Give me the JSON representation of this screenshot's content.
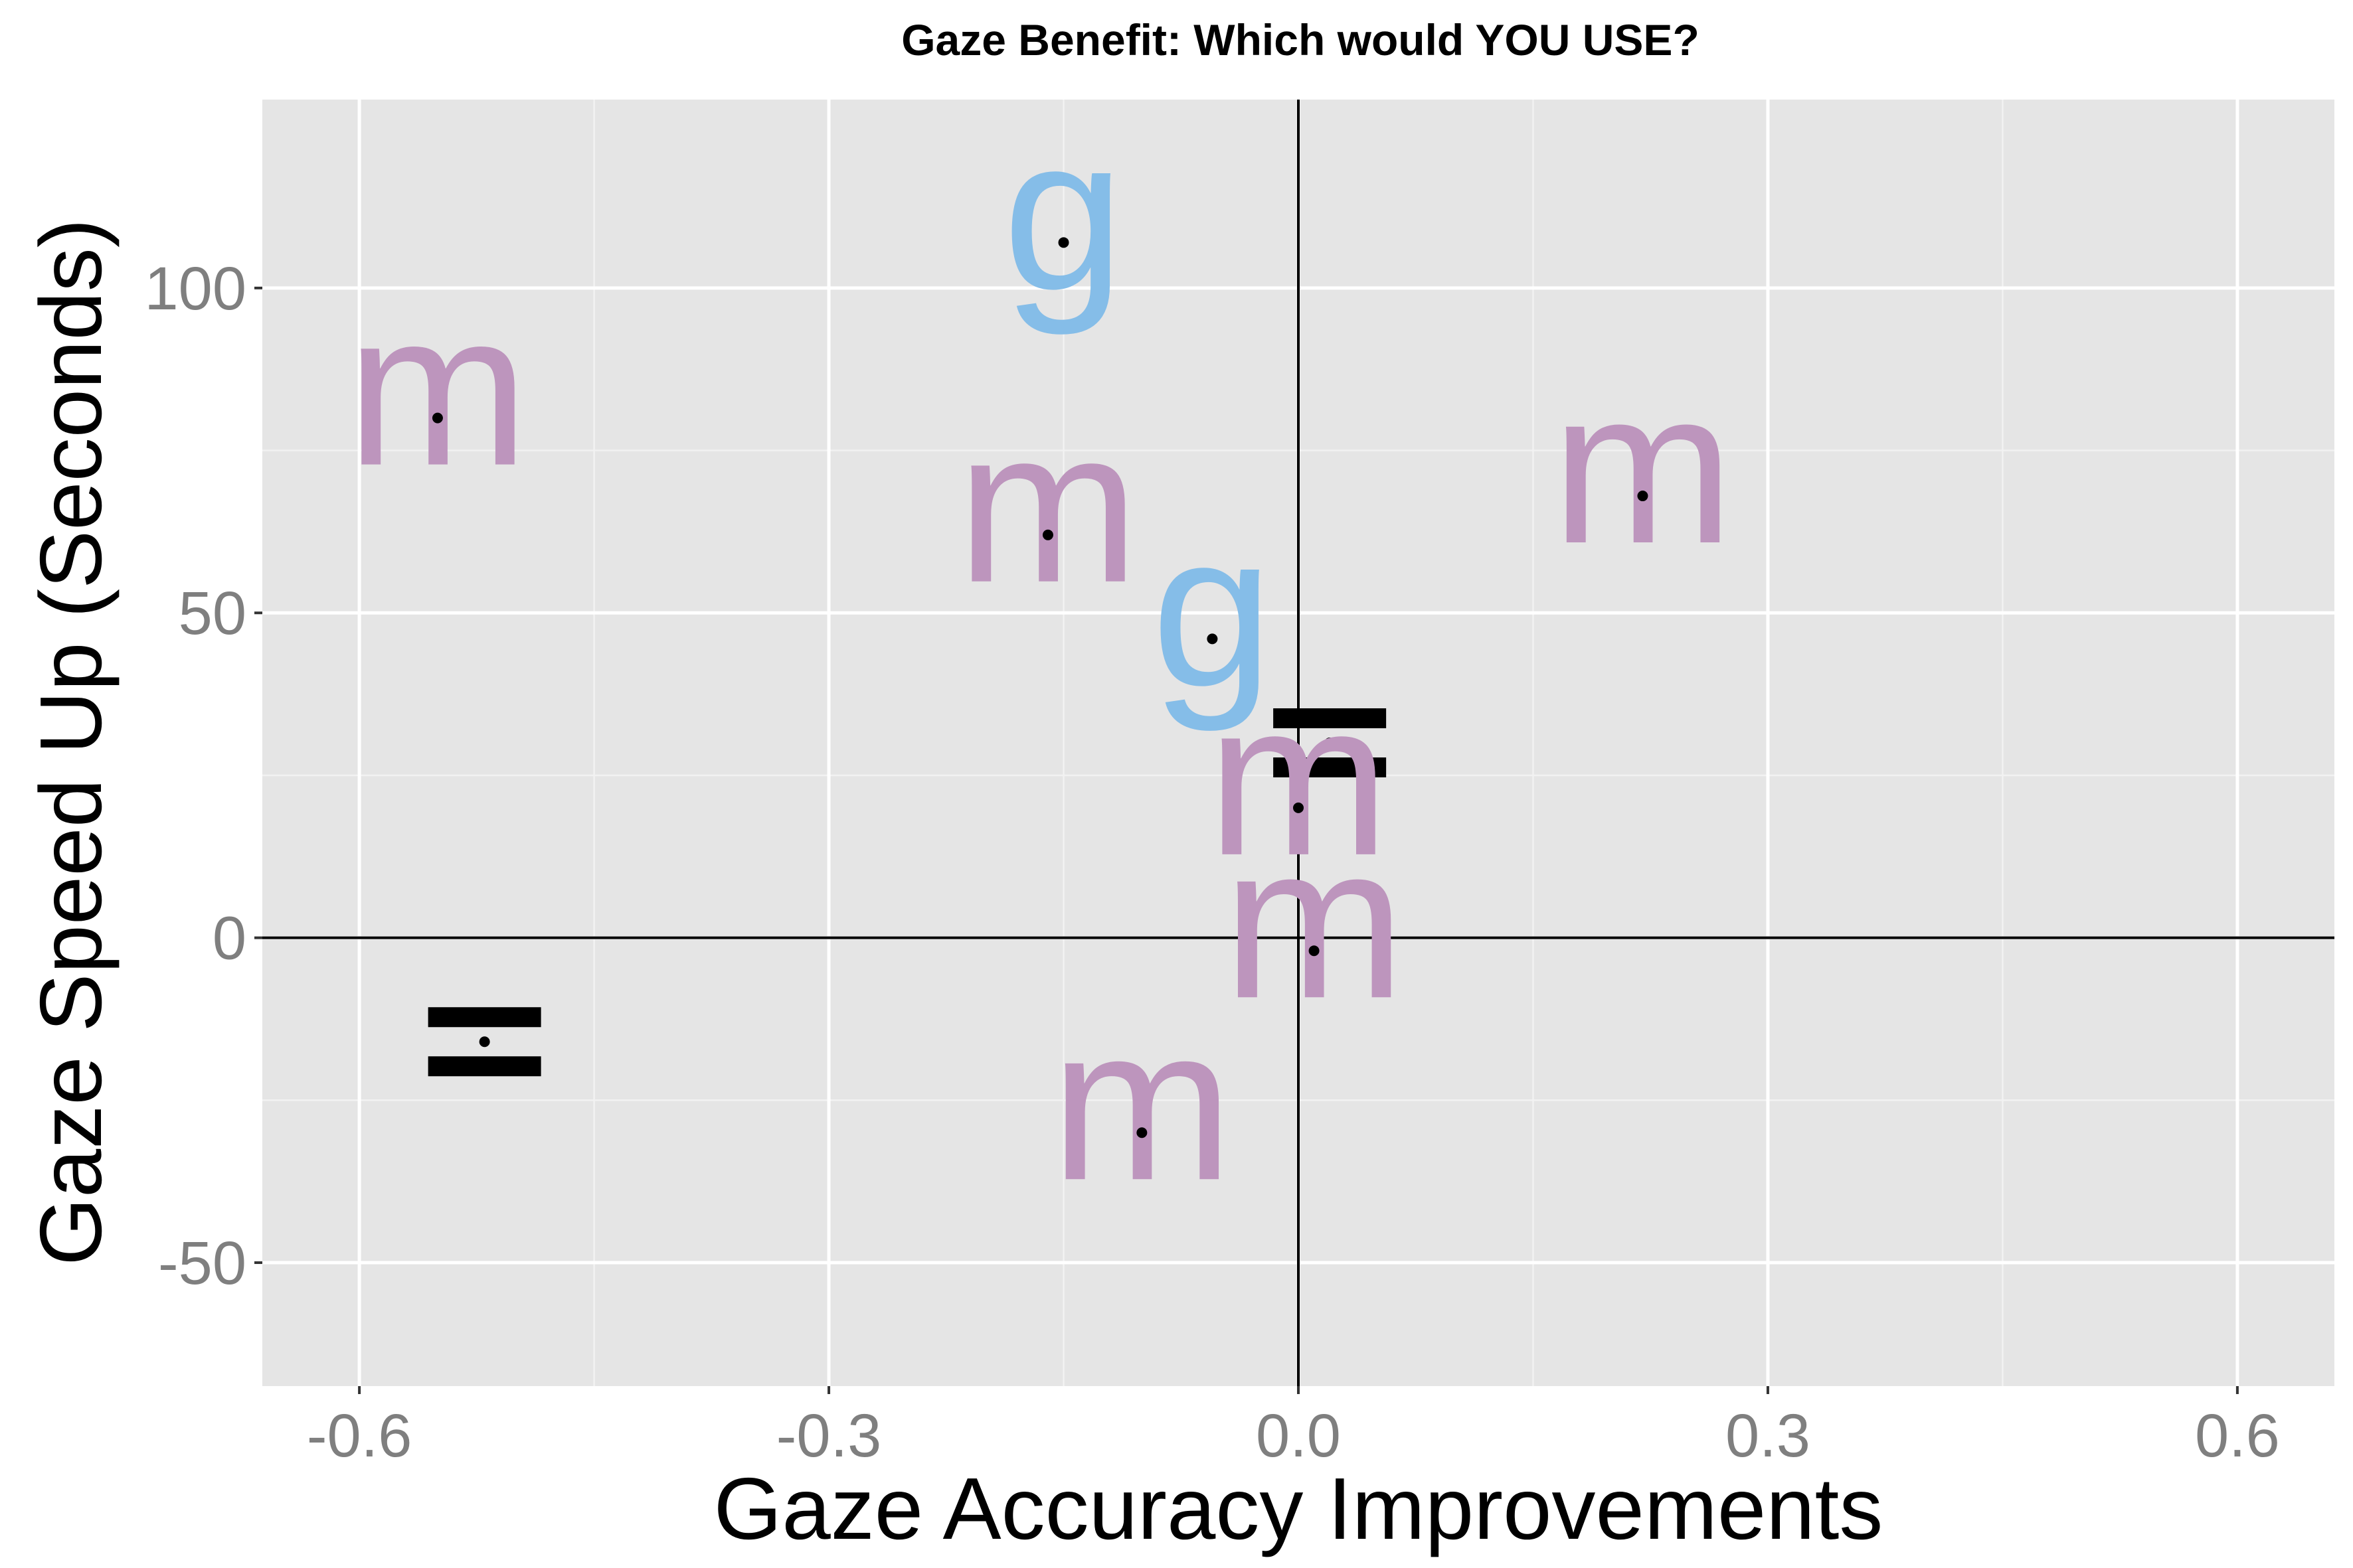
{
  "chart_data": {
    "type": "scatter",
    "title": "Gaze Benefit: Which would YOU USE?",
    "xlabel": "Gaze Accuracy Improvements",
    "ylabel": "Gaze Speed Up (Seconds)",
    "xlim": [
      -0.662,
      0.662
    ],
    "ylim": [
      -69,
      129
    ],
    "x_ticks": [
      -0.6,
      -0.3,
      0.0,
      0.3,
      0.6
    ],
    "x_tick_labels": [
      "-0.6",
      "-0.3",
      "0.0",
      "0.3",
      "0.6"
    ],
    "y_ticks": [
      -50,
      0,
      50,
      100
    ],
    "y_tick_labels": [
      "-50",
      "0",
      "50",
      "100"
    ],
    "grid": true,
    "reference_lines": {
      "x": 0,
      "y": 0
    },
    "colors": {
      "panel": "#e5e5e5",
      "grid": "#ffffff",
      "m": "#bd95bd",
      "g": "#85bde8",
      "equal": "#000000",
      "tick_text": "#7f7f7f"
    },
    "points": [
      {
        "label": "m",
        "x": -0.55,
        "y": 80
      },
      {
        "label": "g",
        "x": -0.15,
        "y": 107
      },
      {
        "label": "m",
        "x": -0.16,
        "y": 62
      },
      {
        "label": "m",
        "x": 0.22,
        "y": 68
      },
      {
        "label": "g",
        "x": -0.055,
        "y": 46
      },
      {
        "label": "=",
        "x": 0.02,
        "y": 30
      },
      {
        "label": "m",
        "x": 0.0,
        "y": 20
      },
      {
        "label": "m",
        "x": 0.01,
        "y": -2
      },
      {
        "label": "m",
        "x": -0.1,
        "y": -30
      },
      {
        "label": "=",
        "x": -0.52,
        "y": -16
      }
    ]
  }
}
